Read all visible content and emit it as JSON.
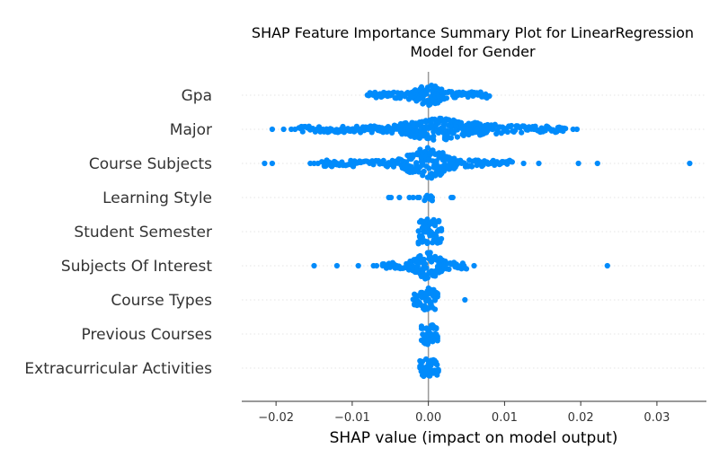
{
  "chart_data": {
    "type": "scatter",
    "title": "SHAP Feature Importance Summary Plot for LinearRegression Model for Gender",
    "title_lines": [
      "SHAP Feature Importance Summary Plot for LinearRegression",
      "Model for Gender"
    ],
    "xlabel": "SHAP value (impact on model output)",
    "ylabel": "",
    "xlim": [
      -0.0245,
      0.0365
    ],
    "x_ticks": [
      -0.02,
      -0.01,
      0.0,
      0.01,
      0.02,
      0.03
    ],
    "x_tick_labels": [
      "−0.02",
      "−0.01",
      "0.00",
      "0.01",
      "0.02",
      "0.03"
    ],
    "grid": false,
    "legend": "none",
    "point_color": "#008bfb",
    "zero_line_color": "#999999",
    "features": [
      {
        "name": "Gpa",
        "min": -0.0083,
        "max": 0.0082,
        "core": [
          -0.008,
          0.008
        ],
        "bulge": [
          [
            0.0,
            0.012
          ]
        ],
        "outliers": []
      },
      {
        "name": "Major",
        "min": -0.0205,
        "max": 0.0195,
        "core": [
          -0.017,
          0.018
        ],
        "bulge": [
          [
            0.0005,
            0.012
          ],
          [
            0.006,
            0.004
          ]
        ],
        "outliers": [
          -0.0205,
          -0.019,
          -0.018,
          -0.0175,
          0.019,
          0.0195
        ]
      },
      {
        "name": "Course Subjects",
        "min": -0.0215,
        "max": 0.0343,
        "core": [
          -0.014,
          0.011
        ],
        "bulge": [
          [
            0.0,
            0.02
          ]
        ],
        "outliers": [
          -0.0215,
          -0.0205,
          -0.0155,
          -0.015,
          -0.0145,
          0.0125,
          0.0145,
          0.0197,
          0.0222,
          0.0343
        ]
      },
      {
        "name": "Learning Style",
        "min": -0.0052,
        "max": 0.0032,
        "core": [
          -0.0005,
          0.0005
        ],
        "bulge": [],
        "outliers": [
          -0.0052,
          -0.0049,
          -0.0038,
          -0.0025,
          -0.002,
          -0.0014,
          -0.0012,
          0.0005,
          0.003,
          0.0032
        ]
      },
      {
        "name": "Student Semester",
        "min": -0.0013,
        "max": 0.0017,
        "core": [
          -0.0013,
          0.0017
        ],
        "bulge": [],
        "outliers": []
      },
      {
        "name": "Subjects Of Interest",
        "min": -0.015,
        "max": 0.0235,
        "core": [
          -0.006,
          0.005
        ],
        "bulge": [
          [
            0.0,
            0.017
          ]
        ],
        "outliers": [
          -0.015,
          -0.012,
          -0.0092,
          -0.0072,
          -0.0068,
          -0.006,
          0.006,
          0.0235
        ]
      },
      {
        "name": "Course Types",
        "min": -0.0022,
        "max": 0.0048,
        "core": [
          -0.002,
          0.0012
        ],
        "bulge": [
          [
            0.0,
            0.014
          ]
        ],
        "outliers": [
          0.0048
        ]
      },
      {
        "name": "Previous Courses",
        "min": -0.0009,
        "max": 0.0012,
        "core": [
          -0.0009,
          0.0012
        ],
        "bulge": [
          [
            0.0,
            0.012
          ]
        ],
        "outliers": []
      },
      {
        "name": "Extracurricular Activities",
        "min": -0.0011,
        "max": 0.0013,
        "core": [
          -0.0011,
          0.0013
        ],
        "bulge": [
          [
            0.0,
            0.01
          ]
        ],
        "outliers": []
      }
    ]
  }
}
